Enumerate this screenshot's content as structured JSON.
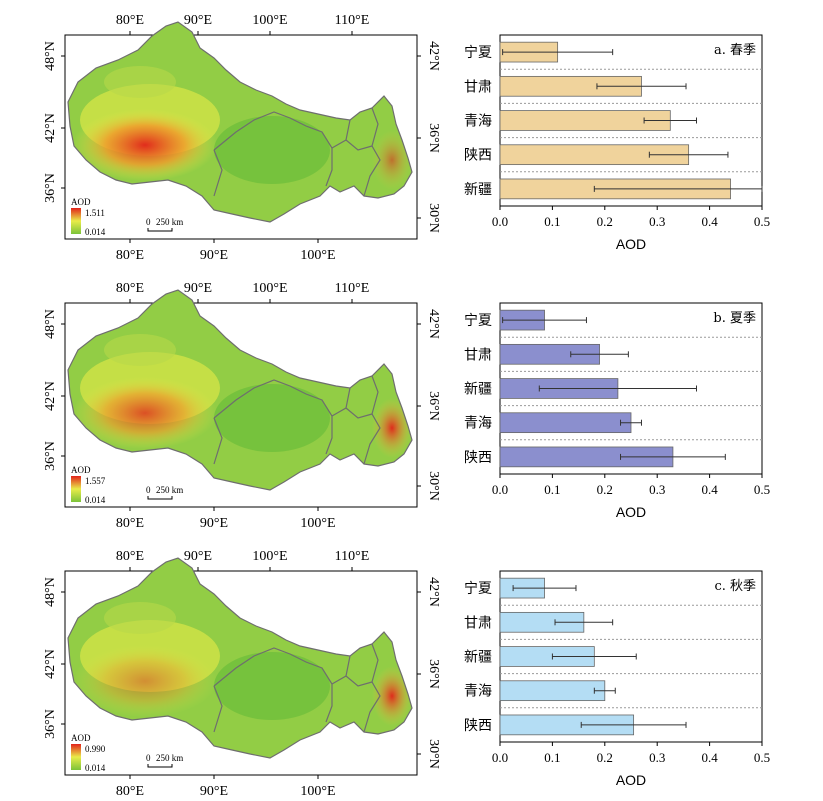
{
  "colors": {
    "spring": "#f0d39c",
    "summer": "#8b8fce",
    "autumn": "#b4ddf4",
    "map_low": "#7cc33a",
    "map_mid": "#e9ec4a",
    "map_high": "#e2231a"
  },
  "map_common": {
    "top_lon_ticks": [
      "80°E",
      "90°E",
      "100°E",
      "110°E"
    ],
    "bottom_lon_ticks": [
      "80°E",
      "90°E",
      "100°E"
    ],
    "left_lat_ticks": [
      "48°N",
      "42°N",
      "36°N"
    ],
    "right_lat_ticks": [
      "42°N",
      "36°N",
      "30°N"
    ],
    "legend_title": "AOD",
    "scale_label": "0    250 km",
    "scale_zero": "0",
    "scale_dist": "250 km"
  },
  "panels": [
    {
      "legend_max": "1.511",
      "legend_min": "0.014"
    },
    {
      "legend_max": "1.557",
      "legend_min": "0.014"
    },
    {
      "legend_max": "0.990",
      "legend_min": "0.014"
    }
  ],
  "chart_data": [
    {
      "type": "bar",
      "orientation": "horizontal",
      "title": "a. 春季",
      "categories": [
        "宁夏",
        "甘肃",
        "青海",
        "陕西",
        "新疆"
      ],
      "values": [
        0.11,
        0.27,
        0.325,
        0.36,
        0.44
      ],
      "error": [
        0.105,
        0.085,
        0.05,
        0.075,
        0.26
      ],
      "xlabel": "AOD",
      "xlim": [
        0,
        0.5
      ],
      "xticks": [
        "0.0",
        "0.1",
        "0.2",
        "0.3",
        "0.4",
        "0.5"
      ],
      "grid": "dashed horizontal"
    },
    {
      "type": "bar",
      "orientation": "horizontal",
      "title": "b. 夏季",
      "categories": [
        "宁夏",
        "甘肃",
        "新疆",
        "青海",
        "陕西"
      ],
      "values": [
        0.085,
        0.19,
        0.225,
        0.25,
        0.33
      ],
      "error": [
        0.08,
        0.055,
        0.15,
        0.02,
        0.1
      ],
      "xlabel": "AOD",
      "xlim": [
        0,
        0.5
      ],
      "xticks": [
        "0.0",
        "0.1",
        "0.2",
        "0.3",
        "0.4",
        "0.5"
      ],
      "grid": "dashed horizontal"
    },
    {
      "type": "bar",
      "orientation": "horizontal",
      "title": "c. 秋季",
      "categories": [
        "宁夏",
        "甘肃",
        "新疆",
        "青海",
        "陕西"
      ],
      "values": [
        0.085,
        0.16,
        0.18,
        0.2,
        0.255
      ],
      "error": [
        0.06,
        0.055,
        0.08,
        0.02,
        0.1
      ],
      "xlabel": "AOD",
      "xlim": [
        0,
        0.5
      ],
      "xticks": [
        "0.0",
        "0.1",
        "0.2",
        "0.3",
        "0.4",
        "0.5"
      ],
      "grid": "dashed horizontal"
    }
  ]
}
